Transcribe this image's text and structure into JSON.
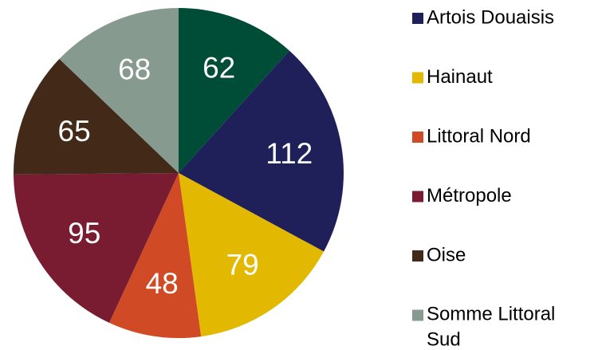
{
  "chart_data": {
    "type": "pie",
    "categories": [
      null,
      "Artois Douaisis",
      "Hainaut",
      "Littoral Nord",
      "Métropole",
      "Oise",
      "Somme Littoral Sud"
    ],
    "values": [
      62,
      112,
      79,
      48,
      95,
      65,
      68
    ],
    "colors": [
      "#004d37",
      "#1f1f5a",
      "#e2b900",
      "#d04a26",
      "#7a1c31",
      "#432a18",
      "#879a8f"
    ],
    "legend": "right"
  }
}
